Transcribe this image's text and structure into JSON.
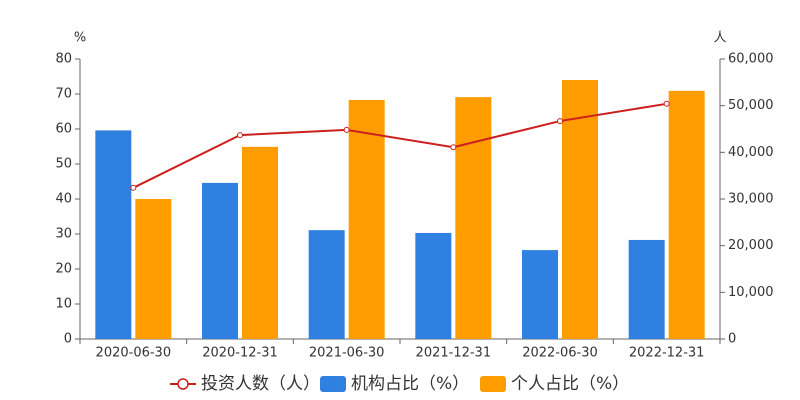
{
  "chart_data": {
    "type": "bar",
    "categories": [
      "2020-06-30",
      "2020-12-31",
      "2021-06-30",
      "2021-12-31",
      "2022-06-30",
      "2022-12-31"
    ],
    "y_unit": "%",
    "y2_unit": "人",
    "ylim": [
      0,
      80
    ],
    "yticks": [
      0,
      10,
      20,
      30,
      40,
      50,
      60,
      70,
      80
    ],
    "y2lim": [
      0,
      60000
    ],
    "y2ticks": [
      0,
      {
        "value": 10000,
        "label": "10,000"
      },
      {
        "value": 20000,
        "label": "20,000"
      },
      {
        "value": 30000,
        "label": "30,000"
      },
      {
        "value": 40000,
        "label": "40,000"
      },
      {
        "value": 50000,
        "label": "50,000"
      },
      {
        "value": 60000,
        "label": "60,000"
      }
    ],
    "grid": false,
    "legend": "bottom",
    "series": [
      {
        "name": "投资人数（人）",
        "type": "line",
        "axis": "y2",
        "color": "#cc1f1f",
        "values": [
          32400,
          43700,
          44800,
          41100,
          46700,
          50400
        ]
      },
      {
        "name": "机构占比（%）",
        "type": "bar",
        "color": "#2f80e0",
        "values": [
          59.6,
          44.6,
          31.1,
          30.3,
          25.4,
          28.3
        ]
      },
      {
        "name": "个人占比（%）",
        "type": "bar",
        "color": "#ff9c00",
        "values": [
          40.0,
          54.9,
          68.3,
          69.1,
          74.0,
          70.9
        ]
      }
    ]
  }
}
